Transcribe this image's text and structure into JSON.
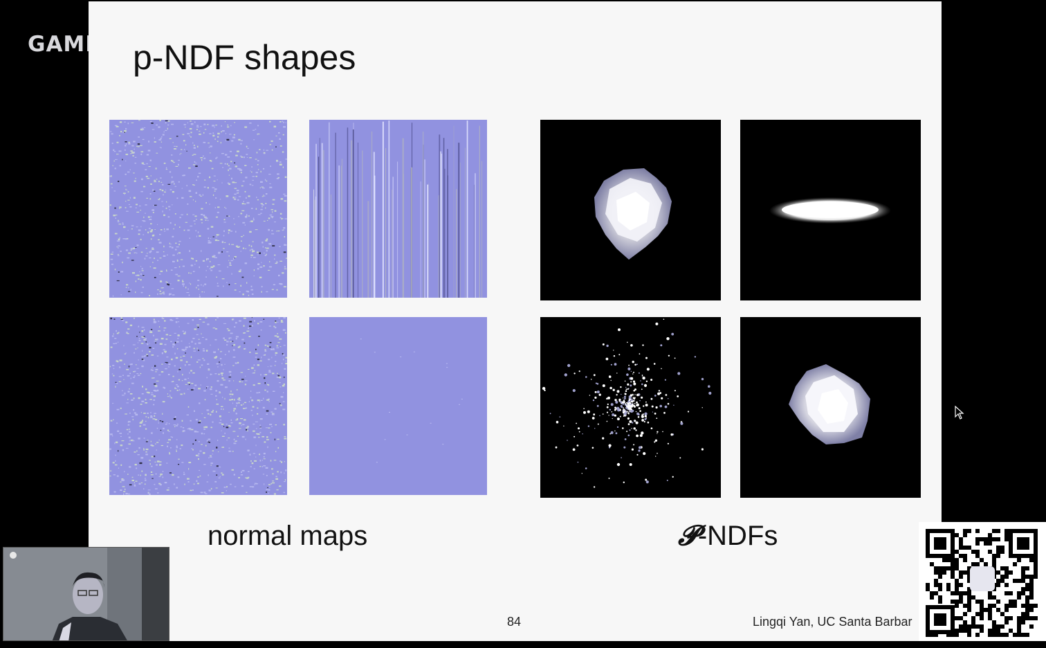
{
  "brand": {
    "text": "GAME"
  },
  "slide": {
    "title": "p-NDF shapes",
    "caption_left": "normal maps",
    "caption_right_symbol": "𝓟",
    "caption_right": "-NDFs",
    "page_number": "84",
    "author": "Lingqi Yan, UC Santa Barbar"
  },
  "colors": {
    "normal_map": "#9192e0",
    "slide_background": "#f7f7f7",
    "ndf_background": "#000000"
  },
  "icons": {
    "cursor": "mouse-pointer-icon",
    "qr": "qr-code-icon"
  }
}
